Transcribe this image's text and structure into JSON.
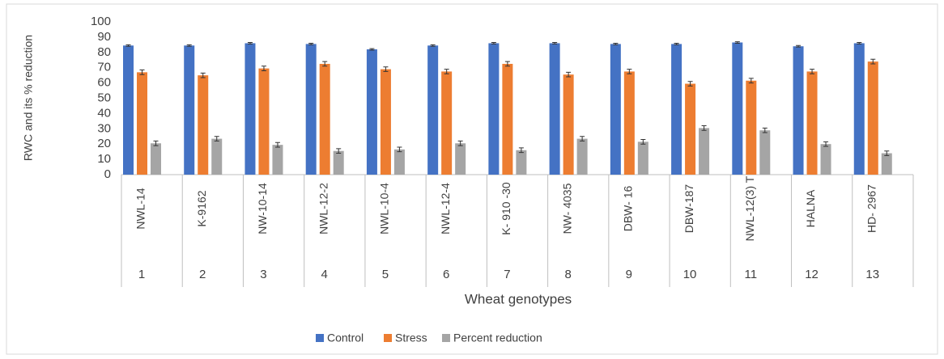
{
  "chart_data": {
    "type": "bar",
    "ylabel": "RWC and its % reduction",
    "xlabel": "Wheat genotypes",
    "categories": [
      "NWL-14",
      "K-9162",
      "NW-10-14",
      "NWL-12-2",
      "NWL-10-4",
      "NWL-12-4",
      "K- 910 -30",
      "NW- 4035",
      "DBW- 16",
      "DBW-187",
      "NWL-12(3) T",
      "HALNA",
      "HD- 2967"
    ],
    "group_labels": [
      1,
      2,
      3,
      4,
      5,
      6,
      7,
      8,
      9,
      10,
      11,
      12,
      13
    ],
    "series": [
      {
        "name": "Control",
        "color": "#4472c4",
        "values": [
          84.5,
          84.5,
          86,
          85.5,
          82,
          84.5,
          86,
          86,
          85.5,
          85.5,
          86.5,
          84,
          86
        ],
        "errors": [
          0.5,
          0.5,
          0.5,
          0.5,
          0.5,
          0.5,
          0.5,
          0.5,
          0.5,
          0.5,
          0.5,
          0.5,
          0.5
        ]
      },
      {
        "name": "Stress",
        "color": "#ed7d31",
        "values": [
          67,
          65,
          69.5,
          72.5,
          69,
          67.5,
          72.5,
          65.5,
          67.5,
          59.5,
          61.5,
          67.5,
          74
        ],
        "errors": [
          1.5,
          1.5,
          1.5,
          1.5,
          1.5,
          1.5,
          1.5,
          1.5,
          1.5,
          1.5,
          1.5,
          1.5,
          1.5
        ]
      },
      {
        "name": "Percent reduction",
        "color": "#a5a5a5",
        "values": [
          20.5,
          23.5,
          19.5,
          15.5,
          16.5,
          20.5,
          16,
          23.5,
          21.5,
          30.5,
          29,
          20,
          14
        ],
        "errors": [
          1.5,
          1.5,
          1.5,
          1.5,
          1.5,
          1.5,
          1.5,
          1.5,
          1.5,
          1.5,
          1.5,
          1.5,
          1.5
        ]
      }
    ],
    "ylim": [
      0,
      100
    ],
    "yticks": [
      0,
      10,
      20,
      30,
      40,
      50,
      60,
      70,
      80,
      90,
      100
    ],
    "legend": "bottom"
  }
}
